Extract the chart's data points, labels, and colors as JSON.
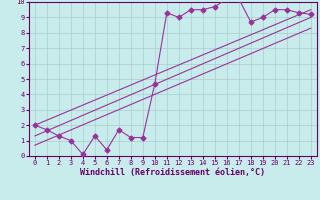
{
  "title": "",
  "xlabel": "Windchill (Refroidissement éolien,°C)",
  "ylabel": "",
  "bg_color": "#c8ecec",
  "grid_color": "#aacccc",
  "line_color": "#993399",
  "xlim": [
    -0.5,
    23.5
  ],
  "ylim": [
    0,
    10
  ],
  "xticks": [
    0,
    1,
    2,
    3,
    4,
    5,
    6,
    7,
    8,
    9,
    10,
    11,
    12,
    13,
    14,
    15,
    16,
    17,
    18,
    19,
    20,
    21,
    22,
    23
  ],
  "yticks": [
    0,
    1,
    2,
    3,
    4,
    5,
    6,
    7,
    8,
    9,
    10
  ],
  "jagged_x": [
    0,
    1,
    2,
    3,
    4,
    5,
    6,
    7,
    8,
    9,
    10,
    11,
    12,
    13,
    14,
    15,
    16,
    17,
    18,
    19,
    20,
    21,
    22,
    23
  ],
  "jagged_y": [
    2.0,
    1.7,
    1.3,
    1.0,
    0.1,
    1.3,
    0.4,
    1.7,
    1.2,
    1.2,
    4.7,
    9.3,
    9.0,
    9.5,
    9.5,
    9.7,
    10.2,
    10.2,
    8.7,
    9.0,
    9.5,
    9.5,
    9.3,
    9.2
  ],
  "line1_x": [
    0,
    23
  ],
  "line1_y": [
    2.0,
    9.5
  ],
  "line2_x": [
    0,
    23
  ],
  "line2_y": [
    1.3,
    9.0
  ],
  "line3_x": [
    0,
    23
  ],
  "line3_y": [
    0.7,
    8.3
  ],
  "marker": "D",
  "markersize": 2.5,
  "linewidth": 0.8,
  "tick_fontsize": 5,
  "xlabel_fontsize": 6,
  "spine_color": "#660066",
  "tick_color": "#660066"
}
